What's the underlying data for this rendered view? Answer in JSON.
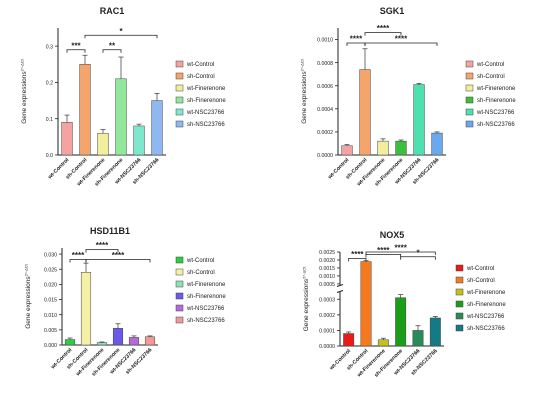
{
  "chart_data": [
    {
      "type": "bar",
      "title": "RAC1",
      "ylabel": "Gene expressions",
      "ylabel_sup": "2^-ΔCt",
      "ylim": [
        0,
        0.35
      ],
      "yticks": [
        0.0,
        0.1,
        0.2,
        0.3
      ],
      "yticklabels": [
        "0.0",
        "0.1",
        "0.2",
        "0.3"
      ],
      "axis_break": false,
      "categories": [
        "wt-Control",
        "sh-Control",
        "wt-Finerenone",
        "sh-Finerenone",
        "wt-NSC23766",
        "sh-NSC23766"
      ],
      "values": [
        0.09,
        0.25,
        0.06,
        0.21,
        0.08,
        0.15
      ],
      "errors": [
        0.02,
        0.025,
        0.01,
        0.06,
        0.005,
        0.02
      ],
      "colors": [
        "#f4a3a3",
        "#f5a56b",
        "#f2ee9c",
        "#92e89a",
        "#7fe8cc",
        "#8fb8f0"
      ],
      "legend": [
        "wt-Control",
        "sh-Control",
        "wt-Finerenone",
        "sh-Finerenone",
        "wt-NSC23766",
        "sh-NSC23766"
      ],
      "significance": [
        {
          "from": 0,
          "to": 1,
          "label": "***",
          "y": 0.29
        },
        {
          "from": 2,
          "to": 3,
          "label": "**",
          "y": 0.29
        },
        {
          "from": 1,
          "to": 5,
          "label": "*",
          "y": 0.33
        }
      ]
    },
    {
      "type": "bar",
      "title": "SGK1",
      "ylabel": "Gene expressions",
      "ylabel_sup": "2^-ΔCt",
      "ylim": [
        0,
        0.0011
      ],
      "yticks": [
        0.0,
        0.0002,
        0.0004,
        0.0006,
        0.0008,
        0.001
      ],
      "yticklabels": [
        "0.0000",
        "0.0002",
        "0.0004",
        "0.0006",
        "0.0008",
        "0.0010"
      ],
      "axis_break": false,
      "categories": [
        "wt-Control",
        "sh-Control",
        "wt-Finerenone",
        "sh-Finerenone",
        "wt-NSC23766",
        "sh-NSC23766"
      ],
      "values": [
        8e-05,
        0.00074,
        0.00012,
        0.00012,
        0.00061,
        0.00019
      ],
      "errors": [
        1e-05,
        0.00018,
        2e-05,
        1e-05,
        1e-05,
        1e-05
      ],
      "colors": [
        "#f4a3a3",
        "#f5a56b",
        "#f2ee9c",
        "#3cbf3c",
        "#4fe0b0",
        "#6aa8f0"
      ],
      "legend": [
        "wt-Control",
        "sh-Control",
        "wt-Finerenone",
        "sh-Finerenone",
        "wt-NSC23766",
        "sh-NSC23766"
      ],
      "significance": [
        {
          "from": 0,
          "to": 1,
          "label": "****",
          "y": 0.00097
        },
        {
          "from": 1,
          "to": 5,
          "label": "****",
          "y": 0.00097
        },
        {
          "from": 1,
          "to": 3,
          "label": "****",
          "y": 0.00106
        }
      ]
    },
    {
      "type": "bar",
      "title": "HSD11B1",
      "ylabel": "Gene expressions",
      "ylabel_sup": "2^-ΔCt",
      "ylim": [
        0,
        0.032
      ],
      "yticks": [
        0.0,
        0.005,
        0.01,
        0.015,
        0.02,
        0.025,
        0.03
      ],
      "yticklabels": [
        "0.000",
        "0.005",
        "0.010",
        "0.015",
        "0.020",
        "0.025",
        "0.030"
      ],
      "axis_break": false,
      "categories": [
        "wt-Control",
        "sh-Control",
        "wt-Finerenone",
        "sh-Finerenone",
        "wt-NSC23766",
        "sh-NSC23766"
      ],
      "values": [
        0.0018,
        0.024,
        0.0008,
        0.0055,
        0.0025,
        0.0027
      ],
      "errors": [
        0.0005,
        0.003,
        0.0002,
        0.0015,
        0.0005,
        0.0003
      ],
      "colors": [
        "#2ecc40",
        "#f5f0a8",
        "#8fe0b8",
        "#6a5ae6",
        "#b56ad8",
        "#f29a9a"
      ],
      "legend": [
        "wt-Control",
        "sh-Control",
        "wt-Finerenone",
        "sh-Finerenone",
        "wt-NSC23766",
        "sh-NSC23766"
      ],
      "significance": [
        {
          "from": 0,
          "to": 1,
          "label": "****",
          "y": 0.0282
        },
        {
          "from": 1,
          "to": 5,
          "label": "****",
          "y": 0.0282
        },
        {
          "from": 1,
          "to": 3,
          "label": "****",
          "y": 0.0315
        }
      ]
    },
    {
      "type": "bar",
      "title": "NOX5",
      "ylabel": "Gene expressions",
      "ylabel_sup": "2^-ΔCt",
      "ylim": [
        0,
        0.0025
      ],
      "yticks": [
        0.0,
        0.0001,
        0.0002,
        0.0003,
        0.0005,
        0.001,
        0.0015,
        0.002,
        0.0025
      ],
      "yticklabels": [
        "0.0000",
        "0.0001",
        "0.0002",
        "0.0003",
        "0.0005",
        "0.0010",
        "0.0015",
        "0.0020",
        "0.0025"
      ],
      "axis_break": true,
      "break_low_max": 0.00035,
      "break_high_min": 0.0004,
      "categories": [
        "wt-Control",
        "sh-Control",
        "wt-Finerenone",
        "sh-Finerenone",
        "wt-NSC23766",
        "sh-NSC23766"
      ],
      "values": [
        8e-05,
        0.0019,
        4e-05,
        0.00031,
        0.0001,
        0.00018
      ],
      "errors": [
        1e-05,
        5e-05,
        1e-05,
        2e-05,
        3e-05,
        1e-05
      ],
      "colors": [
        "#e81a1a",
        "#f57a1e",
        "#c2c21a",
        "#1a9e1a",
        "#2a8a5a",
        "#137a86"
      ],
      "legend": [
        "wt-Control",
        "sh-Control",
        "wt-Finerenone",
        "sh-Finerenone",
        "wt-NSC23766",
        "sh-NSC23766"
      ],
      "significance": [
        {
          "from": 0,
          "to": 1,
          "label": "****",
          "y": 0.0021
        },
        {
          "from": 3,
          "to": 5,
          "label": "*",
          "y": 0.0022
        },
        {
          "from": 1,
          "to": 3,
          "label": "****",
          "y": 0.00235
        },
        {
          "from": 1,
          "to": 5,
          "label": "****",
          "y": 0.0025
        }
      ]
    }
  ]
}
